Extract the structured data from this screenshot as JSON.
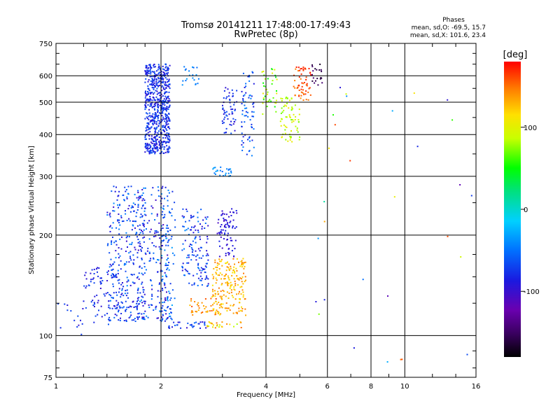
{
  "chart_data": {
    "type": "scatter",
    "title": "Tromsø 20141211 17:48:00-17:49:43",
    "subtitle": "RwPretec (8p)",
    "stats": {
      "heading": "Phases",
      "line1": "mean, sd,O: -69.5, 15.7",
      "line2": "mean, sd,X: 101.6, 23.4"
    },
    "xlabel": "Frequency [MHz]",
    "ylabel": "Stationary phase Virtual Height [km]",
    "x_scale": "log",
    "y_scale": "log",
    "xlim": [
      1,
      16
    ],
    "ylim": [
      75,
      750
    ],
    "x_ticks": [
      1,
      2,
      4,
      6,
      8,
      10,
      16
    ],
    "y_ticks": [
      75,
      100,
      200,
      300,
      400,
      500,
      600,
      750
    ],
    "grid": true,
    "colorbar": {
      "label": "[deg]",
      "range": [
        -180,
        180
      ],
      "ticks": [
        100,
        0,
        -100
      ],
      "colormap": "rainbow (black → purple → blue → cyan → green → yellow → orange → red)"
    },
    "point_clusters": [
      {
        "f_min": 1.0,
        "f_max": 1.2,
        "h_min": 100,
        "h_max": 130,
        "phase_min": -100,
        "phase_max": -60,
        "n": 12
      },
      {
        "f_min": 1.18,
        "f_max": 1.55,
        "h_min": 108,
        "h_max": 160,
        "phase_min": -100,
        "phase_max": -60,
        "n": 90
      },
      {
        "f_min": 1.4,
        "f_max": 1.8,
        "h_min": 110,
        "h_max": 280,
        "phase_min": -100,
        "phase_max": -40,
        "n": 280
      },
      {
        "f_min": 1.7,
        "f_max": 2.1,
        "h_min": 110,
        "h_max": 280,
        "phase_min": -110,
        "phase_max": -40,
        "n": 230
      },
      {
        "f_min": 1.8,
        "f_max": 2.12,
        "h_min": 350,
        "h_max": 650,
        "phase_min": -100,
        "phase_max": -60,
        "n": 650
      },
      {
        "f_min": 2.0,
        "f_max": 2.2,
        "h_min": 110,
        "h_max": 280,
        "phase_min": -80,
        "phase_max": -30,
        "n": 90
      },
      {
        "f_min": 2.1,
        "f_max": 2.7,
        "h_min": 105,
        "h_max": 110,
        "phase_min": -100,
        "phase_max": -50,
        "n": 30
      },
      {
        "f_min": 2.3,
        "f_max": 2.75,
        "h_min": 140,
        "h_max": 240,
        "phase_min": -100,
        "phase_max": -40,
        "n": 140
      },
      {
        "f_min": 2.4,
        "f_max": 2.9,
        "h_min": 115,
        "h_max": 130,
        "phase_min": 120,
        "phase_max": 160,
        "n": 40
      },
      {
        "f_min": 2.9,
        "f_max": 3.3,
        "h_min": 170,
        "h_max": 240,
        "phase_min": -110,
        "phase_max": -80,
        "n": 80
      },
      {
        "f_min": 2.8,
        "f_max": 3.5,
        "h_min": 115,
        "h_max": 170,
        "phase_min": 110,
        "phase_max": 150,
        "n": 200
      },
      {
        "f_min": 2.7,
        "f_max": 3.4,
        "h_min": 105,
        "h_max": 110,
        "phase_min": 80,
        "phase_max": 150,
        "n": 25
      },
      {
        "f_min": 2.3,
        "f_max": 2.6,
        "h_min": 560,
        "h_max": 640,
        "phase_min": -60,
        "phase_max": -30,
        "n": 20
      },
      {
        "f_min": 2.8,
        "f_max": 3.2,
        "h_min": 300,
        "h_max": 320,
        "phase_min": -60,
        "phase_max": -30,
        "n": 25
      },
      {
        "f_min": 3.0,
        "f_max": 3.3,
        "h_min": 400,
        "h_max": 560,
        "phase_min": -100,
        "phase_max": -60,
        "n": 60
      },
      {
        "f_min": 3.4,
        "f_max": 3.7,
        "h_min": 340,
        "h_max": 640,
        "phase_min": -90,
        "phase_max": -40,
        "n": 70
      },
      {
        "f_min": 3.9,
        "f_max": 4.3,
        "h_min": 460,
        "h_max": 630,
        "phase_min": 40,
        "phase_max": 110,
        "n": 40
      },
      {
        "f_min": 4.4,
        "f_max": 5.0,
        "h_min": 380,
        "h_max": 520,
        "phase_min": 70,
        "phase_max": 110,
        "n": 70
      },
      {
        "f_min": 4.8,
        "f_max": 5.4,
        "h_min": 500,
        "h_max": 640,
        "phase_min": 140,
        "phase_max": 175,
        "n": 60
      },
      {
        "f_min": 5.4,
        "f_max": 5.8,
        "h_min": 560,
        "h_max": 650,
        "phase_min": -170,
        "phase_max": -140,
        "n": 20
      },
      {
        "f_min": 5.5,
        "f_max": 16,
        "h_min": 80,
        "h_max": 600,
        "phase_min": -120,
        "phase_max": 180,
        "n": 30
      }
    ]
  }
}
